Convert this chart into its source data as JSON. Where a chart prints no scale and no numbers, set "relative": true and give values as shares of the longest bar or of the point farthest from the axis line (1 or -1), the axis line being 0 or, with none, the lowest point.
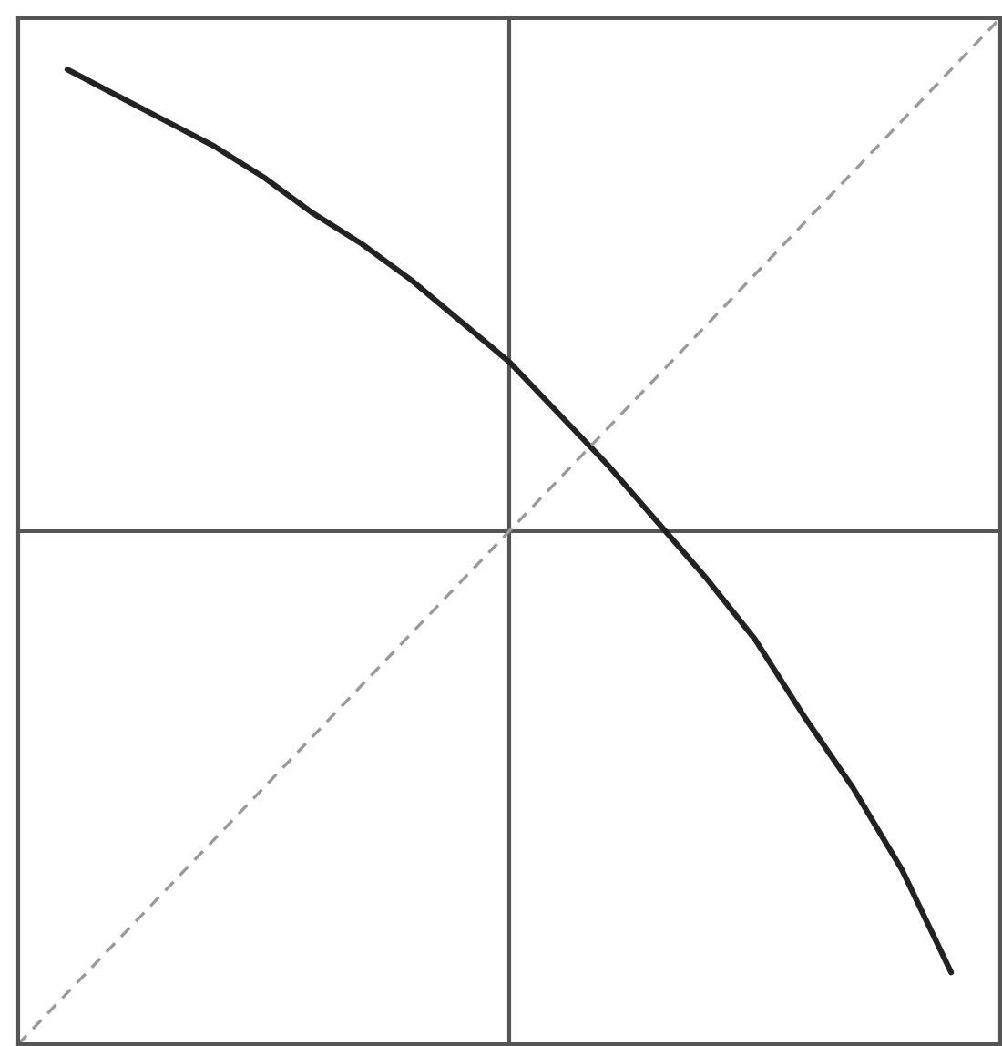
{
  "chart_data": {
    "type": "line",
    "relative": true,
    "categories": [
      null,
      null,
      null,
      null,
      null,
      null,
      null,
      null,
      null,
      null,
      null,
      null,
      null,
      null,
      null,
      null,
      null,
      null,
      null,
      null,
      null
    ],
    "series": [
      {
        "color": "#222222",
        "line_style": "solid",
        "values": [
          null,
          0.9,
          0.85,
          0.8,
          0.75,
          0.69,
          0.62,
          0.56,
          0.49,
          0.41,
          0.33,
          0.23,
          0.13,
          0.02,
          -0.09,
          -0.21,
          -0.36,
          -0.5,
          -0.66,
          -0.86,
          null
        ]
      },
      {
        "color": "#999999",
        "line_style": "dashed",
        "values": [
          -1,
          -0.9,
          -0.8,
          -0.7,
          -0.6,
          -0.5,
          -0.4,
          -0.3,
          -0.2,
          -0.1,
          0,
          0.1,
          0.2,
          0.3,
          0.4,
          0.5,
          0.6,
          0.7,
          0.8,
          0.9,
          1
        ]
      }
    ],
    "ref_lines": [
      {
        "axis": "y",
        "value": 0,
        "color": "#555555"
      }
    ],
    "grid": false,
    "legend": false,
    "marker": "none"
  }
}
